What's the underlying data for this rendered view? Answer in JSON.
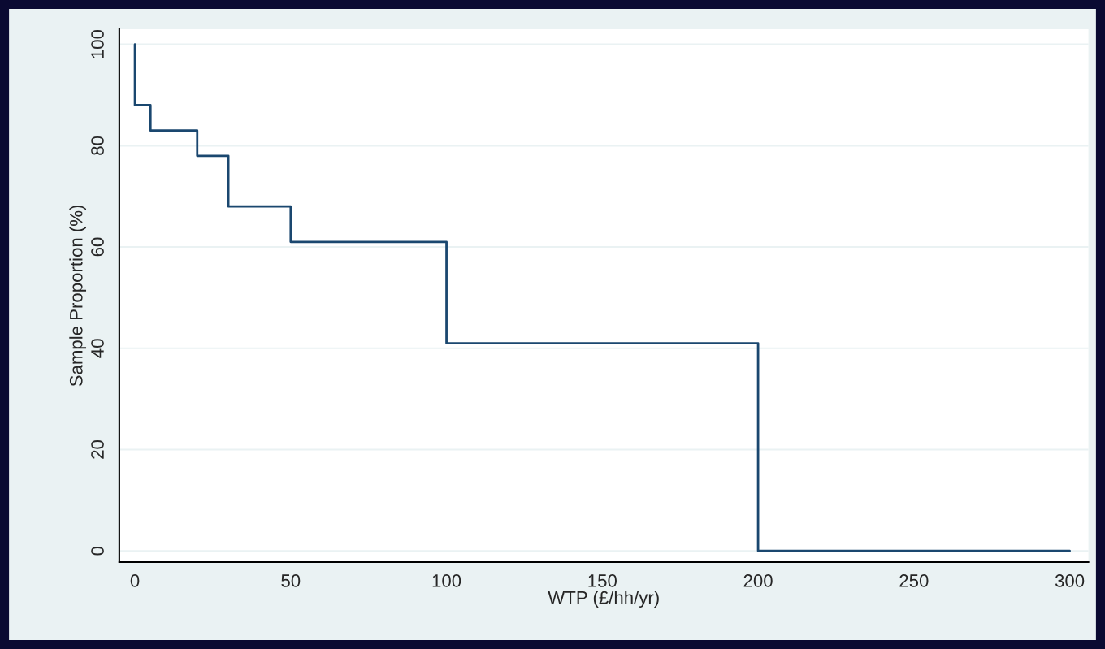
{
  "chart_data": {
    "type": "step",
    "xlabel": "WTP (£/hh/yr)",
    "ylabel": "Sample Proportion (%)",
    "x": [
      0,
      0,
      5,
      20,
      30,
      50,
      100,
      200,
      300
    ],
    "series": [
      {
        "color": "#1a476f",
        "values": [
          100,
          88,
          83,
          78,
          68,
          61,
          41,
          0,
          0
        ]
      }
    ],
    "xlim": [
      -5,
      306
    ],
    "xticks": [
      0,
      50,
      100,
      150,
      200,
      250,
      300
    ],
    "ylim": [
      -2.2,
      103
    ],
    "yticks": [
      0,
      20,
      40,
      60,
      80,
      100
    ],
    "grid": "y",
    "legend": false
  }
}
